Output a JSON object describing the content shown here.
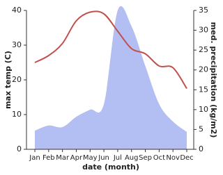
{
  "chart_data": {
    "type": "line-area",
    "categories": [
      "Jan",
      "Feb",
      "Mar",
      "Apr",
      "May",
      "Jun",
      "Jul",
      "Aug",
      "Sep",
      "Oct",
      "Nov",
      "Dec"
    ],
    "x_label": "date (month)",
    "y_label": "max temp (C)",
    "y2_label": "med. precipitation (kg/m2)",
    "series": [
      {
        "name": "max temp",
        "color": "#c0504d",
        "kind": "line",
        "values": [
          25,
          27,
          30.5,
          37,
          39.5,
          39,
          34,
          29,
          27.5,
          24,
          23.5,
          17.5
        ]
      },
      {
        "name": "med. precipitation",
        "color": "#b3bff2",
        "kind": "area",
        "axis": "y2",
        "values": [
          4.7,
          6,
          5.6,
          8.2,
          10,
          11.4,
          35,
          31,
          21,
          11.4,
          7,
          4.4
        ]
      }
    ],
    "ylim": [
      0,
      40
    ],
    "yticks": [
      0,
      10,
      20,
      30,
      40
    ],
    "y2lim": [
      0,
      35
    ],
    "y2ticks": [
      0,
      5,
      10,
      15,
      20,
      25,
      30,
      35
    ]
  }
}
